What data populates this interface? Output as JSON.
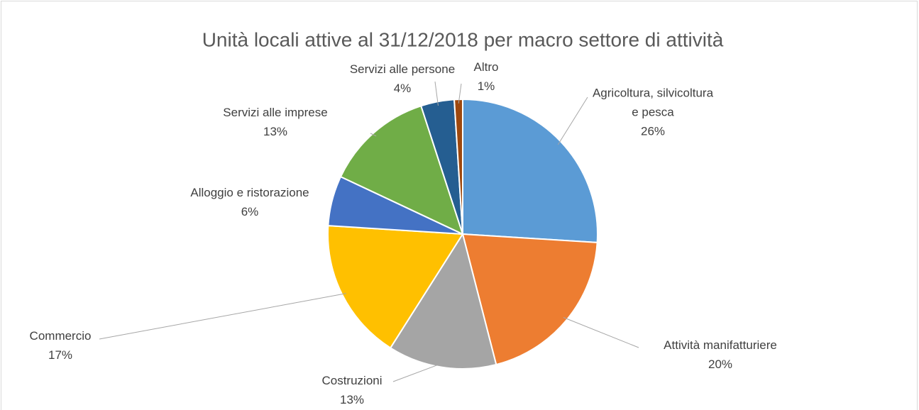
{
  "chart_data": {
    "type": "pie",
    "title": "Unità locali attive al 31/12/2018 per macro settore di attività",
    "categories": [
      "Agricoltura, silvicoltura e pesca",
      "Attività manifatturiere",
      "Costruzioni",
      "Commercio",
      "Alloggio e ristorazione",
      "Servizi alle imprese",
      "Servizi alle persone",
      "Altro"
    ],
    "values": [
      26,
      20,
      13,
      17,
      6,
      13,
      4,
      1
    ],
    "value_labels": [
      "26%",
      "20%",
      "13%",
      "17%",
      "6%",
      "13%",
      "4%",
      "1%"
    ],
    "colors": [
      "#5b9bd5",
      "#ed7d31",
      "#a5a5a5",
      "#ffc000",
      "#4472c4",
      "#70ad47",
      "#255e91",
      "#9e480e"
    ]
  }
}
